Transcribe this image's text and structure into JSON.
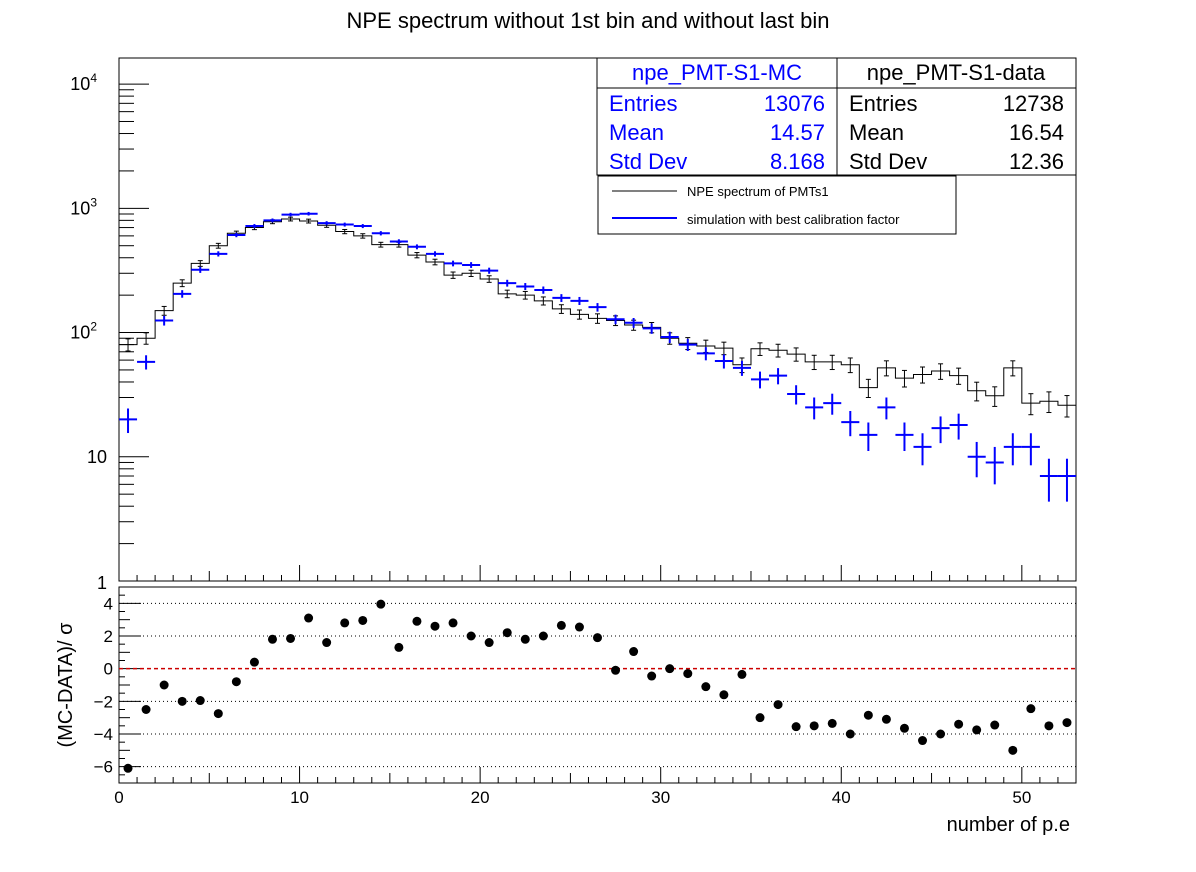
{
  "title": "NPE spectrum without 1st bin and without last bin",
  "colors": {
    "mc": "#0000ff",
    "data": "#000000",
    "zero_line": "#cc0000",
    "grid": "#000000"
  },
  "stats": {
    "mc": {
      "name": "npe_PMT-S1-MC",
      "entries_label": "Entries",
      "entries": "13076",
      "mean_label": "Mean",
      "mean": "14.57",
      "std_label": "Std Dev",
      "std": "8.168"
    },
    "data": {
      "name": "npe_PMT-S1-data",
      "entries_label": "Entries",
      "entries": "12738",
      "mean_label": "Mean",
      "mean": "16.54",
      "std_label": "Std Dev",
      "std": "12.36"
    }
  },
  "legend": {
    "entries": [
      {
        "label": "NPE spectrum of PMTs1",
        "color": "#000000"
      },
      {
        "label": "simulation with best calibration factor",
        "color": "#0000ff"
      }
    ]
  },
  "chart_data": [
    {
      "type": "line",
      "title": "NPE spectrum without 1st bin and without last bin",
      "ylabel": "",
      "xlabel": "",
      "yscale": "log",
      "xlim": [
        0,
        53
      ],
      "ylim": [
        1,
        13000
      ],
      "ytick_labels": [
        "1",
        "10",
        "10^2",
        "10^3",
        "10^4"
      ],
      "bin_width": 1,
      "series": [
        {
          "name": "NPE spectrum of PMTs1",
          "style": "histogram-with-errors",
          "x": [
            0.5,
            1.5,
            2.5,
            3.5,
            4.5,
            5.5,
            6.5,
            7.5,
            8.5,
            9.5,
            10.5,
            11.5,
            12.5,
            13.5,
            14.5,
            15.5,
            16.5,
            17.5,
            18.5,
            19.5,
            20.5,
            21.5,
            22.5,
            23.5,
            24.5,
            25.5,
            26.5,
            27.5,
            28.5,
            29.5,
            30.5,
            31.5,
            32.5,
            33.5,
            34.5,
            35.5,
            36.5,
            37.5,
            38.5,
            39.5,
            40.5,
            41.5,
            42.5,
            43.5,
            44.5,
            45.5,
            46.5,
            47.5,
            48.5,
            49.5,
            50.5,
            51.5,
            52.5
          ],
          "values": [
            80,
            90,
            150,
            250,
            360,
            500,
            630,
            700,
            780,
            820,
            790,
            730,
            650,
            600,
            510,
            510,
            420,
            370,
            290,
            300,
            270,
            205,
            200,
            180,
            155,
            140,
            130,
            125,
            115,
            110,
            90,
            82,
            78,
            75,
            55,
            74,
            72,
            67,
            58,
            58,
            55,
            36,
            52,
            43,
            46,
            49,
            45,
            34,
            31,
            52,
            27,
            28,
            26
          ]
        },
        {
          "name": "simulation with best calibration factor",
          "style": "errorbar-cross",
          "x": [
            0.5,
            1.5,
            2.5,
            3.5,
            4.5,
            5.5,
            6.5,
            7.5,
            8.5,
            9.5,
            10.5,
            11.5,
            12.5,
            13.5,
            14.5,
            15.5,
            16.5,
            17.5,
            18.5,
            19.5,
            20.5,
            21.5,
            22.5,
            23.5,
            24.5,
            25.5,
            26.5,
            27.5,
            28.5,
            29.5,
            30.5,
            31.5,
            32.5,
            33.5,
            34.5,
            35.5,
            36.5,
            37.5,
            38.5,
            39.5,
            40.5,
            41.5,
            42.5,
            43.5,
            44.5,
            45.5,
            46.5,
            47.5,
            48.5,
            49.5,
            50.5,
            51.5,
            52.5
          ],
          "values": [
            20,
            58,
            125,
            205,
            320,
            430,
            610,
            720,
            800,
            890,
            905,
            760,
            740,
            720,
            630,
            540,
            490,
            430,
            360,
            350,
            315,
            250,
            235,
            220,
            190,
            180,
            160,
            128,
            120,
            108,
            92,
            80,
            68,
            59,
            52,
            42,
            45,
            32,
            25,
            27,
            19,
            15,
            25,
            15,
            12,
            17,
            18,
            10,
            9,
            12,
            12,
            7,
            7
          ]
        }
      ]
    },
    {
      "type": "scatter",
      "ylabel": "(MC-DATA)/ σ",
      "xlabel": "number of p.e",
      "xlim": [
        0,
        53
      ],
      "ylim": [
        -7,
        5
      ],
      "yticks": [
        -6,
        -4,
        -2,
        0,
        2,
        4
      ],
      "xticks": [
        0,
        10,
        20,
        30,
        40,
        50
      ],
      "grid": "horizontal-dotted",
      "reference_line": 0,
      "series": [
        {
          "name": "",
          "x": [
            0.5,
            1.5,
            2.5,
            3.5,
            4.5,
            5.5,
            6.5,
            7.5,
            8.5,
            9.5,
            10.5,
            11.5,
            12.5,
            13.5,
            14.5,
            15.5,
            16.5,
            17.5,
            18.5,
            19.5,
            20.5,
            21.5,
            22.5,
            23.5,
            24.5,
            25.5,
            26.5,
            27.5,
            28.5,
            29.5,
            30.5,
            31.5,
            32.5,
            33.5,
            34.5,
            35.5,
            36.5,
            37.5,
            38.5,
            39.5,
            40.5,
            41.5,
            42.5,
            43.5,
            44.5,
            45.5,
            46.5,
            47.5,
            48.5,
            49.5,
            50.5,
            51.5,
            52.5
          ],
          "values": [
            -6.1,
            -2.5,
            -1.0,
            -2.0,
            -1.95,
            -2.75,
            -0.8,
            0.4,
            1.8,
            1.85,
            3.1,
            1.6,
            2.8,
            2.95,
            3.95,
            1.3,
            2.9,
            2.6,
            2.8,
            2.0,
            1.6,
            2.2,
            1.8,
            2.0,
            2.65,
            2.55,
            1.9,
            -0.1,
            1.05,
            -0.45,
            0.0,
            -0.3,
            -1.1,
            -1.6,
            -0.35,
            -3.0,
            -2.2,
            -3.55,
            -3.5,
            -3.35,
            -4.0,
            -2.85,
            -3.1,
            -3.65,
            -4.4,
            -4.0,
            -3.4,
            -3.75,
            -3.45,
            -5.0,
            -2.45,
            -3.5,
            -3.3
          ]
        }
      ]
    }
  ]
}
